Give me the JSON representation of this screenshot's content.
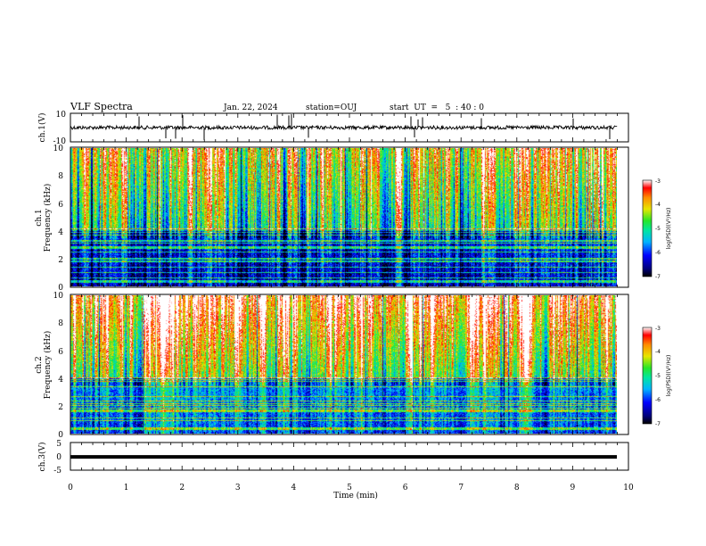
{
  "header": {
    "title": "VLF Spectra",
    "date": "Jan. 22, 2024",
    "station": "station=OUJ",
    "start": "start  UT  =   5  : 40 : 0"
  },
  "chart_data": [
    {
      "type": "line",
      "name": "ch1-waveform",
      "ylabel": "ch.1(V)",
      "ylim": [
        -10,
        10
      ],
      "yticks_labeled": [
        "10",
        "-10"
      ],
      "xlim": [
        0,
        10
      ],
      "baseline": 0
    },
    {
      "type": "heatmap",
      "name": "ch1-spectrogram",
      "ylabel": "ch.1\nFrequency (kHz)",
      "ylabel_line1": "ch.1",
      "ylabel_line2": "Frequency (kHz)",
      "ylim": [
        0,
        10
      ],
      "yticks": [
        "0",
        "2",
        "4",
        "6",
        "8",
        "10"
      ],
      "xlim": [
        0,
        10
      ],
      "data_end_x": 9.8,
      "colorbar": {
        "label": "log(PSD)(V²/Hz)",
        "range": [
          -7,
          -3
        ],
        "ticks": [
          "-3",
          "-4",
          "-5",
          "-6",
          "-7"
        ]
      }
    },
    {
      "type": "heatmap",
      "name": "ch2-spectrogram",
      "ylabel": "ch.2\nFrequency (kHz)",
      "ylabel_line1": "ch.2",
      "ylabel_line2": "Frequency (kHz)",
      "ylim": [
        0,
        10
      ],
      "yticks": [
        "0",
        "2",
        "4",
        "6",
        "8",
        "10"
      ],
      "xlim": [
        0,
        10
      ],
      "data_end_x": 9.8,
      "colorbar": {
        "label": "log(PSD)(V²/Hz)",
        "range": [
          -7,
          -3
        ],
        "ticks": [
          "-3",
          "-4",
          "-5",
          "-6",
          "-7"
        ]
      }
    },
    {
      "type": "line",
      "name": "ch3-waveform",
      "ylabel": "ch.3(V)",
      "ylim": [
        -5,
        5
      ],
      "yticks": [
        "5",
        "0",
        "-5"
      ],
      "xlim": [
        0,
        10
      ],
      "constant_value": -0.2
    }
  ],
  "xaxis": {
    "label": "Time (min)",
    "ticks": [
      "0",
      "1",
      "2",
      "3",
      "4",
      "5",
      "6",
      "7",
      "8",
      "9",
      "10"
    ]
  }
}
